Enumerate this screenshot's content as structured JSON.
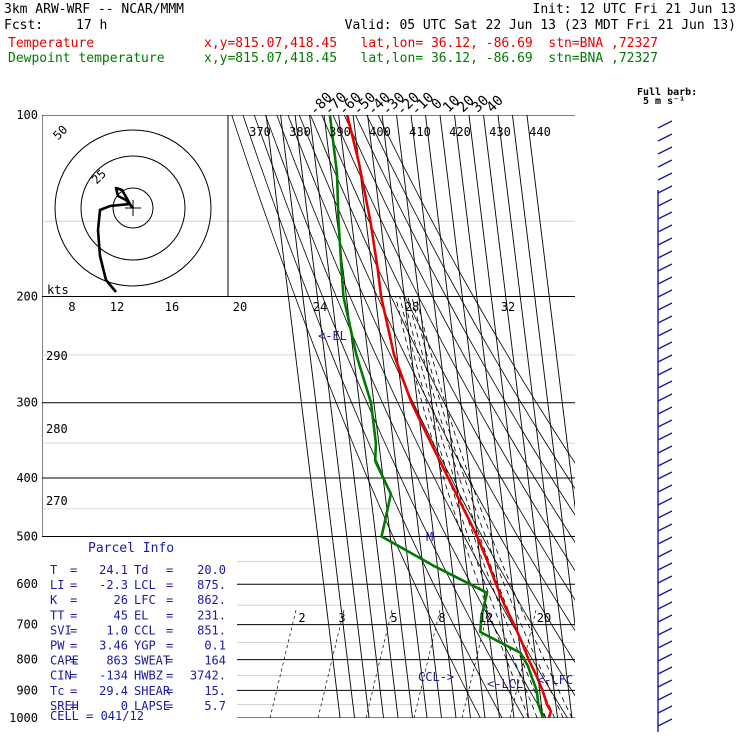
{
  "header": {
    "model": "3km ARW-WRF -- NCAR/MMM",
    "init": "Init: 12 UTC Fri 21 Jun 13",
    "fcst_label": "Fcst:",
    "fcst_value": "17 h",
    "valid": "Valid: 05 UTC Sat 22 Jun 13 (23 MDT Fri 21 Jun 13)",
    "temp_label": "Temperature",
    "temp_loc": "x,y=815.07,418.45   lat,lon= 36.12, -86.69  stn=BNA ,72327",
    "dew_label": "Dewpoint temperature",
    "dew_loc": "x,y=815.07,418.45   lat,lon= 36.12, -86.69  stn=BNA ,72327"
  },
  "barb_legend": {
    "line1": "Full barb:",
    "line2": "5 m s⁻¹"
  },
  "chart_data": {
    "type": "skew-t",
    "pressure_levels": [
      100,
      200,
      300,
      400,
      500,
      600,
      700,
      800,
      900,
      1000
    ],
    "isotherm_labels": [
      -80,
      -70,
      -60,
      -50,
      -40,
      -30,
      -20,
      -10,
      0,
      10,
      20,
      30,
      40
    ],
    "theta_labels": [
      370,
      380,
      390,
      400,
      410,
      420,
      430,
      440
    ],
    "mixing_ratio_labels_upper": [
      8,
      12,
      16,
      20,
      24,
      28,
      32
    ],
    "mixing_ratio_labels_lower": [
      2,
      3,
      5,
      8,
      12,
      20
    ],
    "left_edge_labels": [
      290,
      280,
      270
    ],
    "hodograph": {
      "unit": "kts",
      "ring_labels": [
        25,
        50
      ]
    },
    "series": [
      {
        "name": "Temperature",
        "color": "#e60000",
        "points": [
          [
            100,
            -64
          ],
          [
            120,
            -60
          ],
          [
            150,
            -57
          ],
          [
            180,
            -56
          ],
          [
            200,
            -56
          ],
          [
            250,
            -52
          ],
          [
            300,
            -44
          ],
          [
            350,
            -34
          ],
          [
            400,
            -25
          ],
          [
            450,
            -17
          ],
          [
            500,
            -10
          ],
          [
            550,
            -5
          ],
          [
            600,
            -1
          ],
          [
            650,
            3
          ],
          [
            700,
            8
          ],
          [
            750,
            12
          ],
          [
            800,
            15
          ],
          [
            850,
            19
          ],
          [
            900,
            22
          ],
          [
            950,
            24
          ],
          [
            975,
            26
          ],
          [
            1000,
            24
          ]
        ]
      },
      {
        "name": "Dewpoint temperature",
        "color": "#007a00",
        "points": [
          [
            100,
            -76
          ],
          [
            125,
            -76
          ],
          [
            150,
            -79
          ],
          [
            180,
            -81
          ],
          [
            200,
            -82
          ],
          [
            250,
            -78
          ],
          [
            300,
            -72
          ],
          [
            350,
            -72
          ],
          [
            375,
            -74
          ],
          [
            425,
            -66
          ],
          [
            500,
            -76
          ],
          [
            560,
            -42
          ],
          [
            620,
            -8
          ],
          [
            680,
            -14
          ],
          [
            720,
            -16
          ],
          [
            780,
            10
          ],
          [
            820,
            14
          ],
          [
            860,
            16
          ],
          [
            900,
            18
          ],
          [
            950,
            18
          ],
          [
            1000,
            20
          ]
        ]
      }
    ],
    "markers": {
      "EL": "<-EL",
      "CCL": "CCL->",
      "LCL": "<-LCL",
      "LFC": "<-LFC",
      "M": "M"
    },
    "parcel_info": {
      "title": "Parcel Info",
      "rows": [
        [
          "T",
          "=",
          "24.1",
          "Td",
          "=",
          "20.0"
        ],
        [
          "LI",
          "=",
          "-2.3",
          "LCL",
          "=",
          "875."
        ],
        [
          "K",
          "=",
          "26",
          "LFC",
          "=",
          "862."
        ],
        [
          "TT",
          "=",
          "45",
          "EL",
          "=",
          "231."
        ],
        [
          "SVI",
          "=",
          "1.0",
          "CCL",
          "=",
          "851."
        ],
        [
          "PW",
          "=",
          "3.46",
          "YGP",
          "=",
          "0.1"
        ],
        [
          "CAPE",
          "=",
          "863",
          "SWEAT",
          "=",
          "164"
        ],
        [
          "CIN",
          "=",
          "-134",
          "HWBZ",
          "=",
          "3742."
        ],
        [
          "Tc",
          "=",
          "29.4",
          "SHEAR",
          "=",
          "15."
        ],
        [
          "SREH",
          "=",
          "0",
          "LAPSE",
          "=",
          "5.7"
        ]
      ],
      "cell": "CELL = 041/12"
    }
  }
}
